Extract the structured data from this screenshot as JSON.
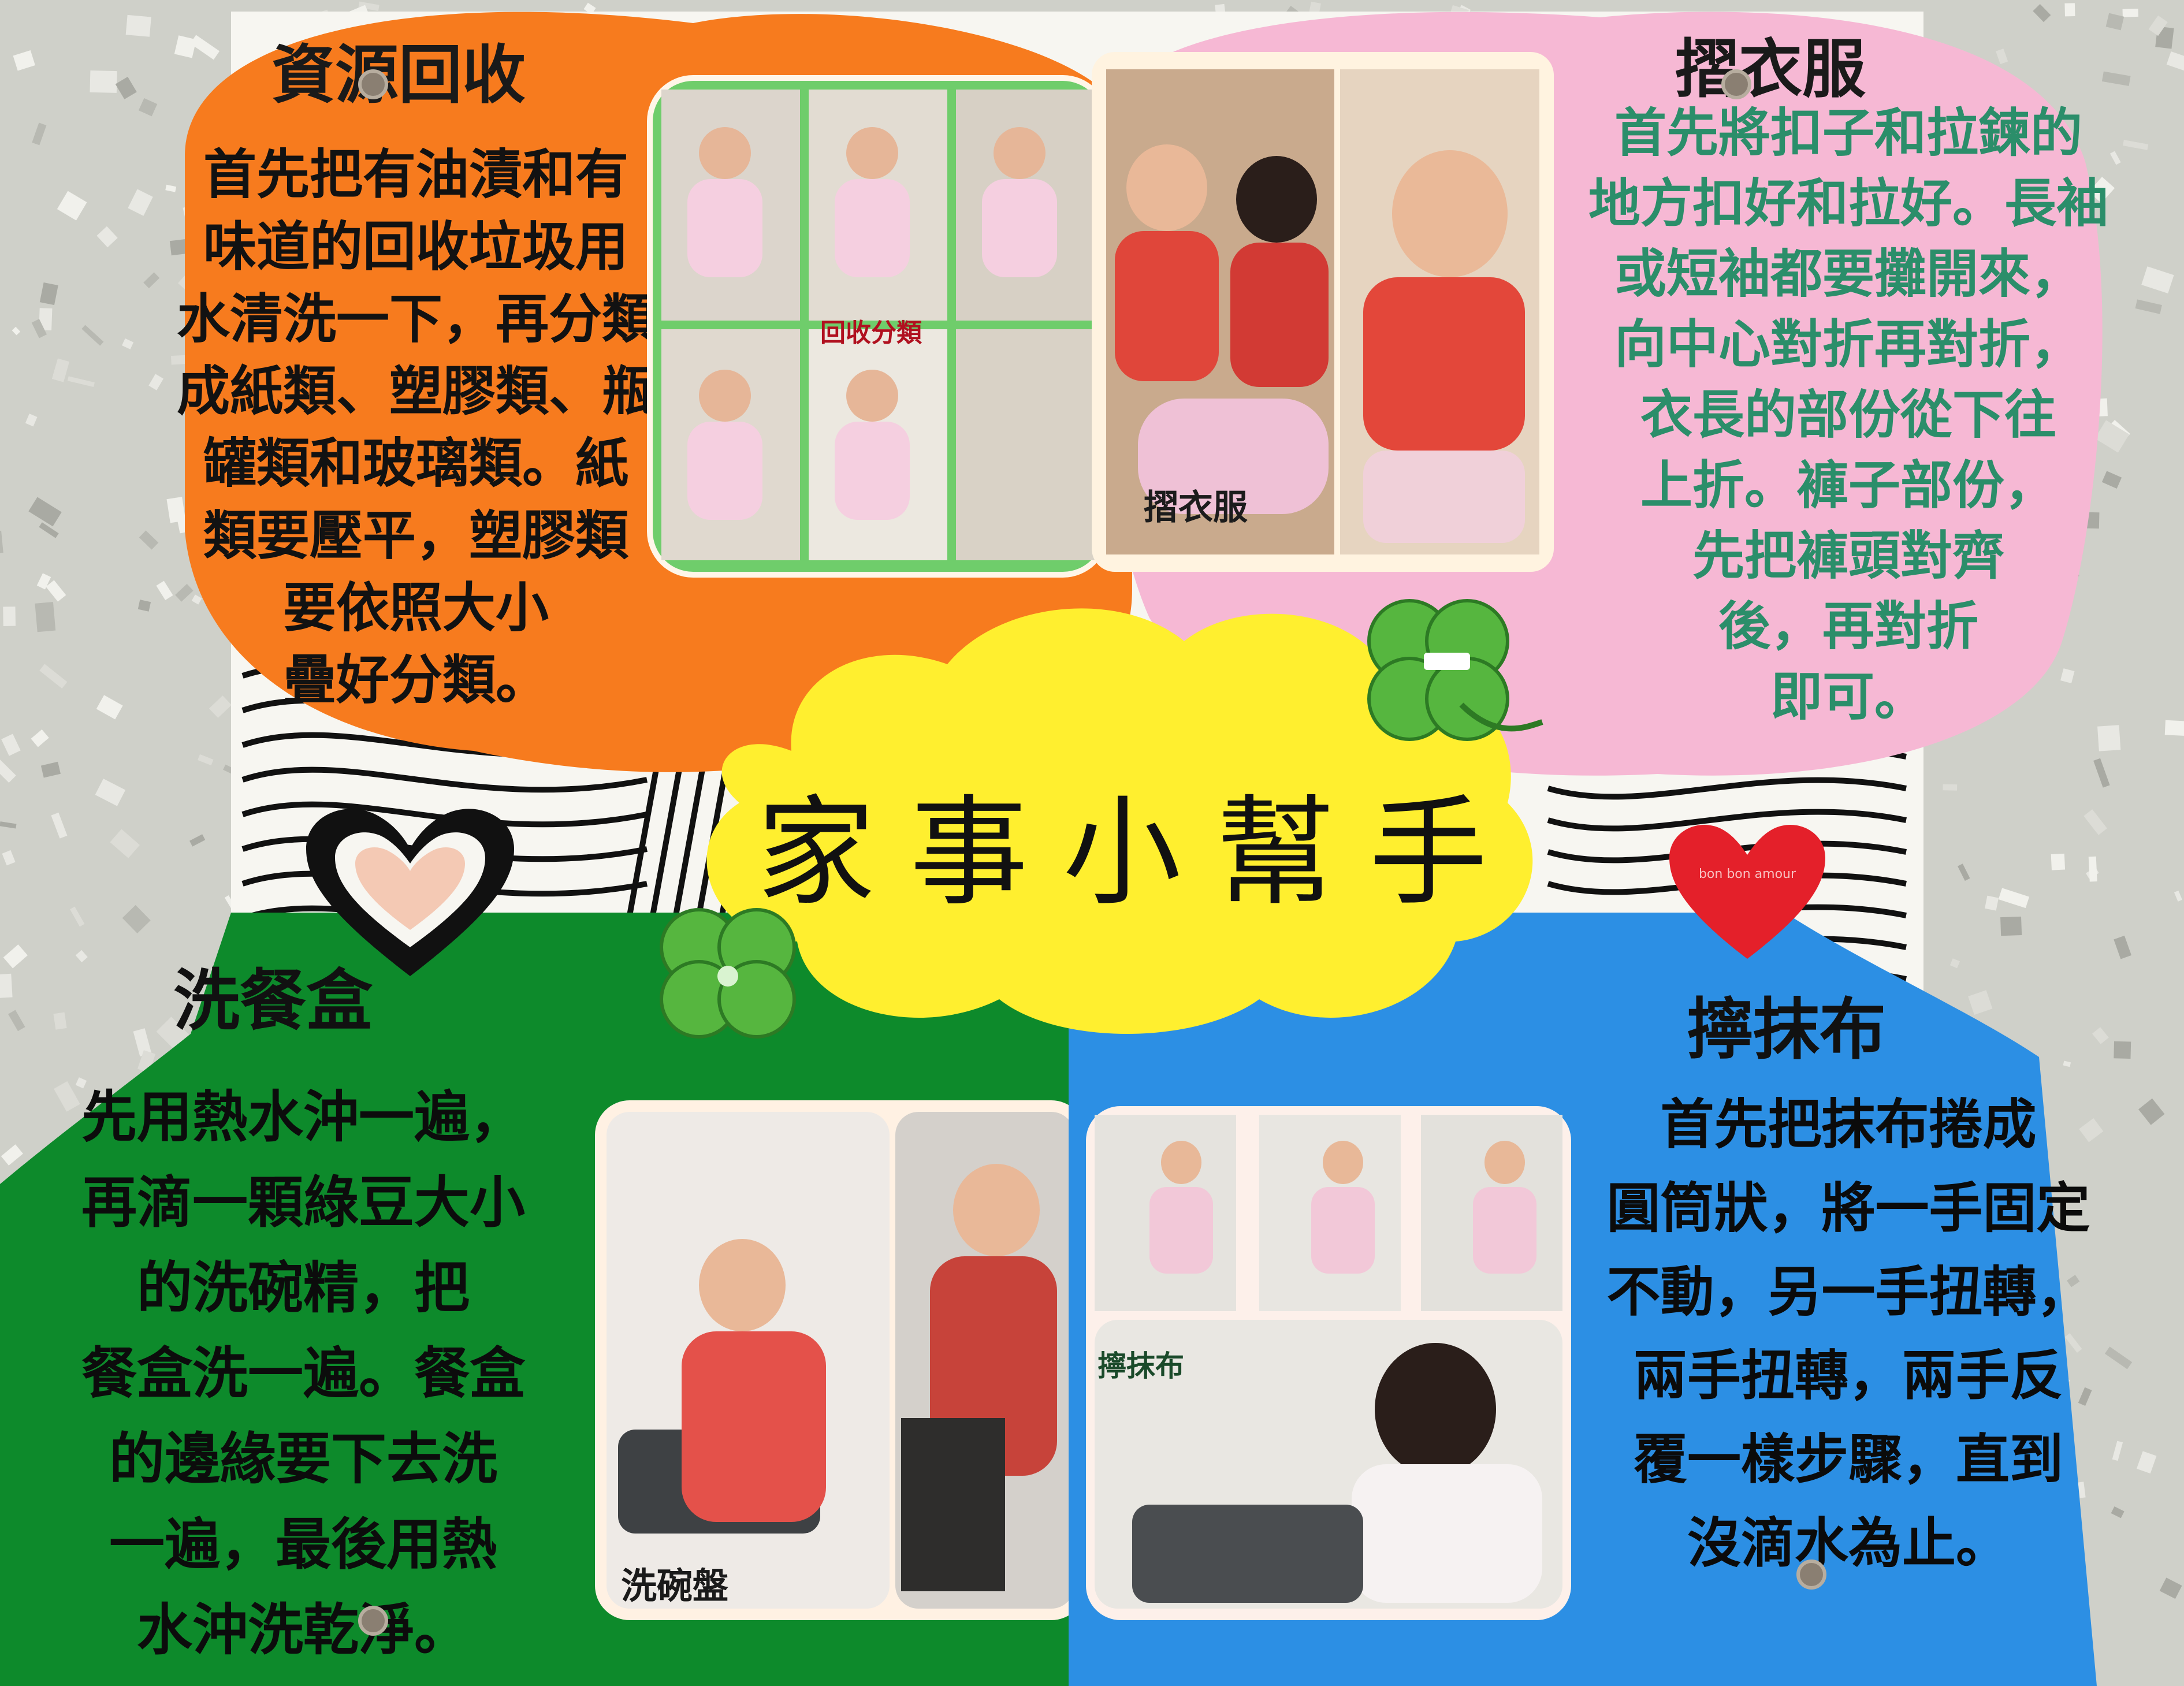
{
  "poster": {
    "title": "家事小幫手"
  },
  "panels": {
    "recycle": {
      "title": "資源回收",
      "body": "首先把有油漬和有\n味道的回收垃圾用\n水清洗一下，再分類\n成紙類、塑膠類、瓶\n罐類和玻璃類。紙\n類要壓平，塑膠類\n要依照大小\n疊好分類。",
      "caption": "回收分類",
      "color": "#f77b1e"
    },
    "fold_clothes": {
      "title": "摺衣服",
      "body": "首先將扣子和拉鍊的\n地方扣好和拉好。長袖\n或短袖都要攤開來，\n向中心對折再對折，\n衣長的部份從下往\n上折。褲子部份，\n先把褲頭對齊\n後，再對折\n即可。",
      "caption": "摺衣服",
      "color": "#f6b8d4"
    },
    "wash_lunchbox": {
      "title": "洗餐盒",
      "body": "先用熱水沖一遍，\n再滴一顆綠豆大小\n的洗碗精，把\n餐盒洗一遍。餐盒\n的邊緣要下去洗\n一遍，最後用熱\n水沖洗乾淨。",
      "caption": "洗碗盤",
      "color": "#0d8a2b"
    },
    "wring_cloth": {
      "title": "擰抹布",
      "body": "首先把抹布捲成\n圓筒狀，將一手固定\n不動，另一手扭轉，\n兩手扭轉，兩手反\n覆一樣步驟，直到\n沒滴水為止。",
      "caption": "擰抹布",
      "color": "#2c8fe4"
    }
  },
  "decorations": {
    "heart_sticker_text": "bon bon amour",
    "shamrock_icon": "shamrock-icon",
    "heart_icon": "heart-icon"
  }
}
